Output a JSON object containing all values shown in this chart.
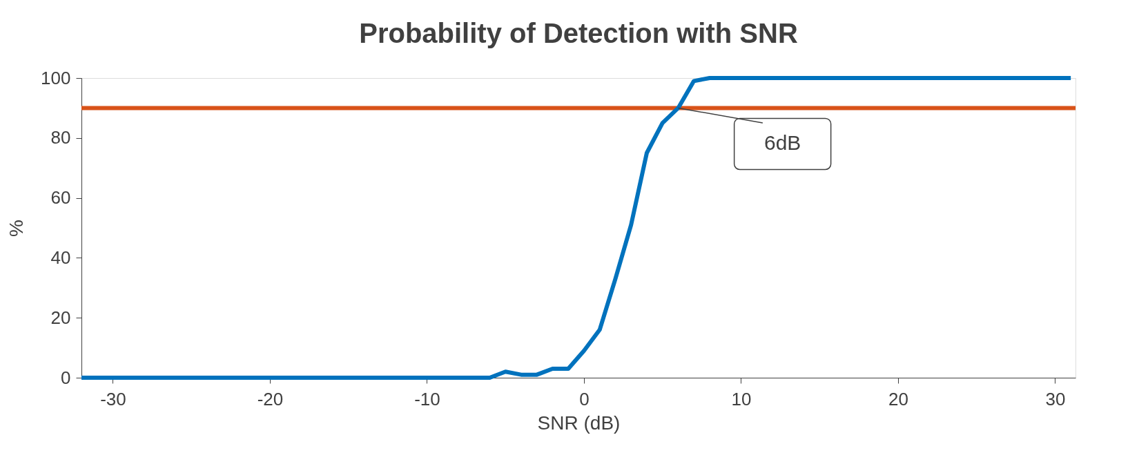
{
  "chart_data": {
    "type": "line",
    "title": "Probability of Detection with SNR",
    "xlabel": "SNR (dB)",
    "ylabel": "%",
    "x": [
      -32,
      -31,
      -30,
      -29,
      -28,
      -27,
      -26,
      -25,
      -24,
      -23,
      -22,
      -21,
      -20,
      -19,
      -18,
      -17,
      -16,
      -15,
      -14,
      -13,
      -12,
      -11,
      -10,
      -9,
      -8,
      -7,
      -6,
      -5,
      -4,
      -3,
      -2,
      -1,
      0,
      1,
      2,
      3,
      4,
      5,
      6,
      7,
      8,
      9,
      10,
      11,
      12,
      13,
      14,
      15,
      16,
      17,
      18,
      19,
      20,
      21,
      22,
      23,
      24,
      25,
      26,
      27,
      28,
      29,
      30,
      31
    ],
    "series": [
      {
        "color": "#0072bd",
        "values": [
          0,
          0,
          0,
          0,
          0,
          0,
          0,
          0,
          0,
          0,
          0,
          0,
          0,
          0,
          0,
          0,
          0,
          0,
          0,
          0,
          0,
          0,
          0,
          0,
          0,
          0,
          0,
          2,
          1,
          1,
          3,
          3,
          9,
          16,
          33,
          51,
          75,
          85,
          90,
          99,
          100,
          100,
          100,
          100,
          100,
          100,
          100,
          100,
          100,
          100,
          100,
          100,
          100,
          100,
          100,
          100,
          100,
          100,
          100,
          100,
          100,
          100,
          100,
          100
        ]
      }
    ],
    "ref_lines": [
      {
        "axis": "y",
        "value": 90,
        "color": "#d95319"
      }
    ],
    "annotations": [
      {
        "text": "6dB",
        "x": 6,
        "y": 90
      }
    ],
    "xlim": [
      -32,
      31.3
    ],
    "xticks": [
      -30,
      -20,
      -10,
      0,
      10,
      20,
      30
    ],
    "ylim": [
      0,
      100
    ],
    "yticks": [
      0,
      20,
      40,
      60,
      80,
      100
    ],
    "grid": false,
    "marker": "none",
    "line_style": "solid"
  }
}
